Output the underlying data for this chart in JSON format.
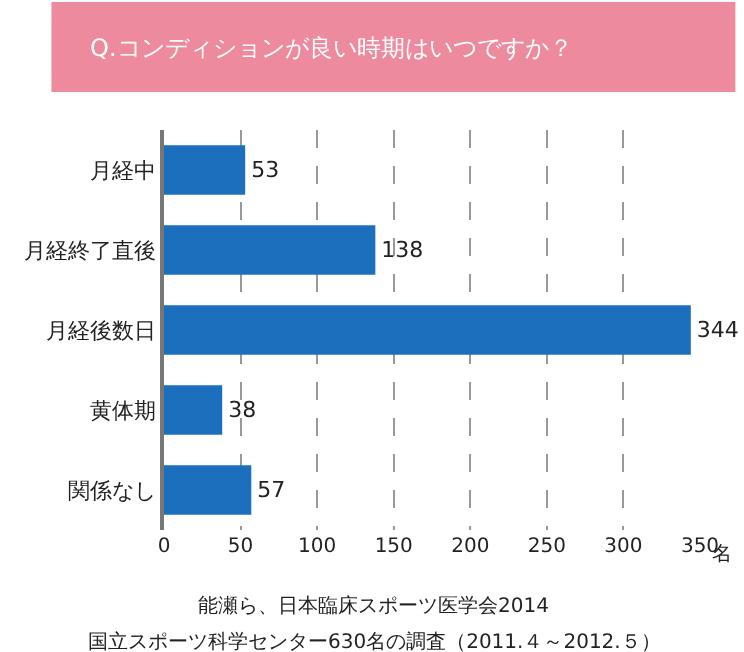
{
  "chart_data": {
    "type": "bar",
    "orientation": "horizontal",
    "title": "Q.コンディションが良い時期はいつですか？",
    "xlabel": "名",
    "categories": [
      "月経中",
      "月経終了直後",
      "月経後数日",
      "黄体期",
      "関係なし"
    ],
    "values": [
      53,
      138,
      344,
      38,
      57
    ],
    "color": "#1b6fbd",
    "data_labels": true,
    "xlim": [
      0,
      350
    ],
    "xticks": [
      0,
      50,
      100,
      150,
      200,
      250,
      300,
      350
    ],
    "grid": "x",
    "annotations": [
      "能瀬ら、日本臨床スポーツ医学会2014",
      "国立スポーツ科学センター630名の調査（2011.４～2012.５）"
    ]
  }
}
